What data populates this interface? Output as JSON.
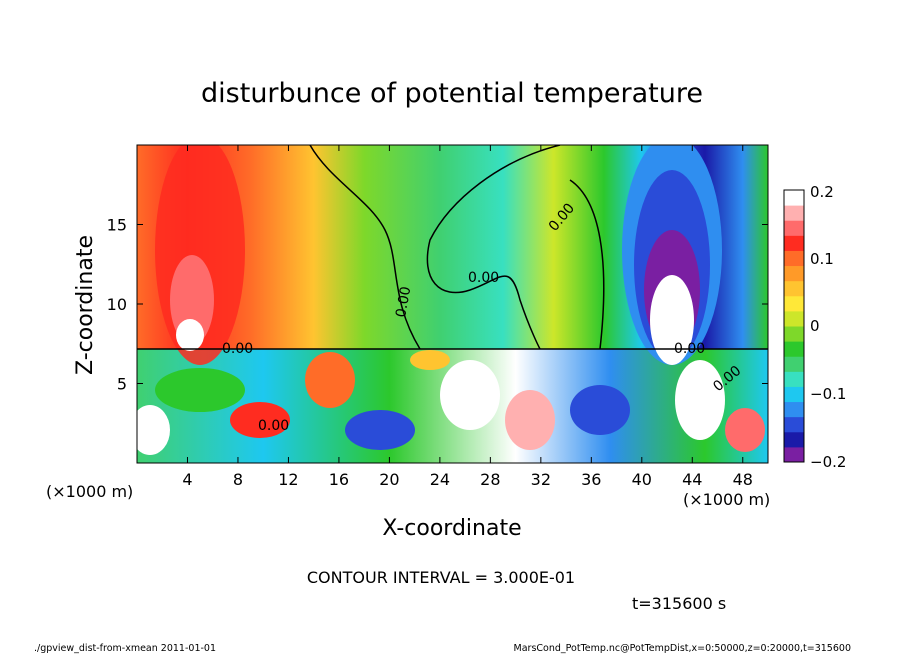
{
  "chart_data": {
    "type": "heatmap",
    "title": "disturbunce of potential temperature",
    "xlabel": "X-coordinate",
    "ylabel": "Z-coordinate",
    "x_unit": "(×1000 m)",
    "y_unit": "(×1000 m)",
    "xlim": [
      0,
      50
    ],
    "ylim": [
      0,
      20
    ],
    "x_ticks": [
      4,
      8,
      12,
      16,
      20,
      24,
      28,
      32,
      36,
      40,
      44,
      48
    ],
    "y_ticks": [
      5,
      10,
      15
    ],
    "colorbar": {
      "range": [
        -0.2,
        0.2
      ],
      "labels": [
        "0.2",
        "0.1",
        "0",
        "−0.1",
        "−0.2"
      ],
      "colors": [
        "#7a1fa2",
        "#1a1aa8",
        "#2a4cd8",
        "#2f8ef0",
        "#1ec8f0",
        "#38e0c0",
        "#40d070",
        "#2cc82c",
        "#7ed82a",
        "#cde62a",
        "#ffe838",
        "#ffc430",
        "#ff9a28",
        "#ff6c28",
        "#ff2c20",
        "#ff6b6b",
        "#ffb0b0",
        "#ffffff"
      ]
    },
    "contour_labels": [
      "0.00",
      "0.00",
      "0.00",
      "0.00",
      "0.00",
      "0.00",
      "0.00"
    ],
    "contour_interval_text": "CONTOUR INTERVAL = 3.000E-01",
    "time_text": "t=315600 s",
    "footer_left": "./gpview_dist-from-xmean  2011-01-01",
    "footer_right": "MarsCond_PotTemp.nc@PotTempDist,x=0:50000,z=0:20000,t=315600"
  }
}
